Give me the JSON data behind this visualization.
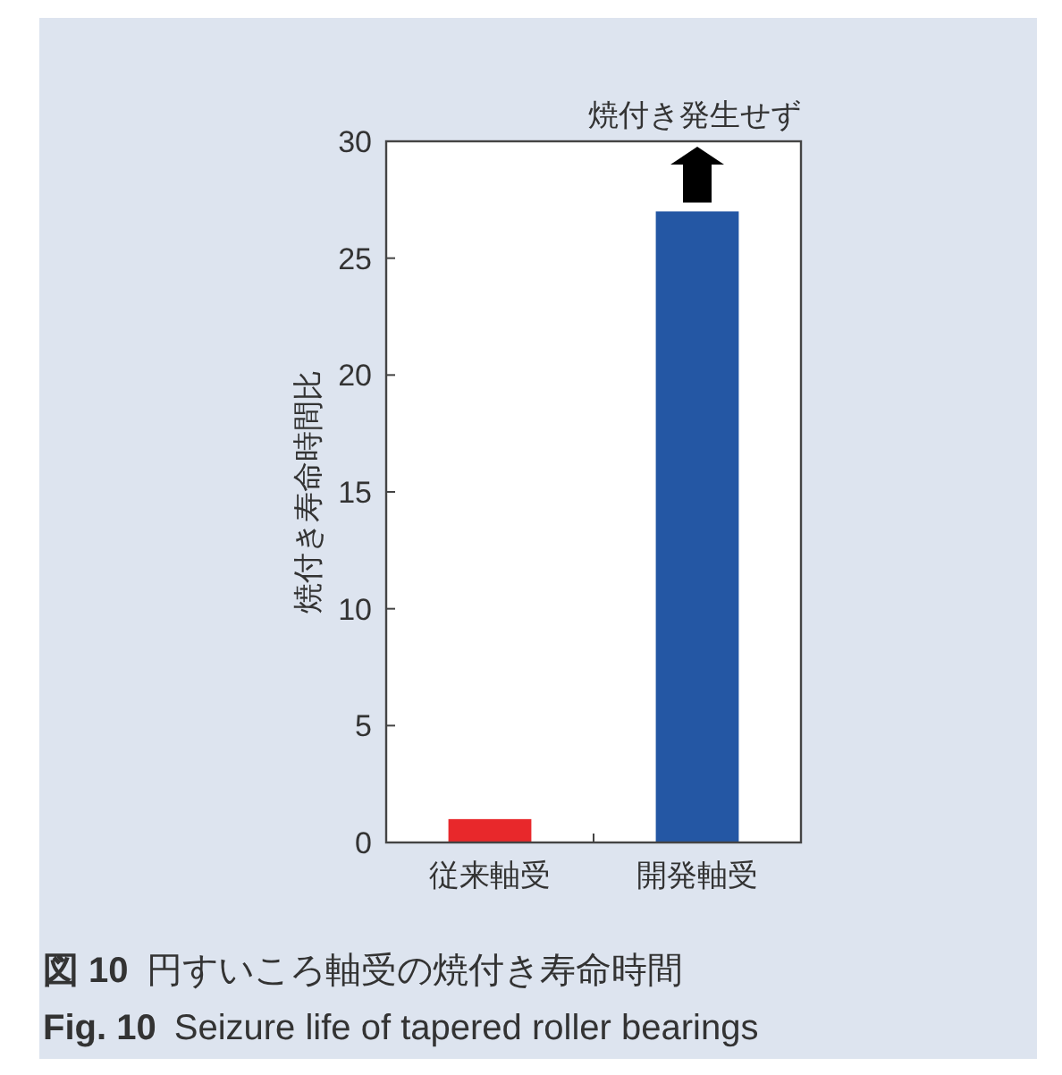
{
  "chart_data": {
    "type": "bar",
    "ylabel": "焼付き寿命時間比",
    "categories": [
      "従来軸受",
      "開発軸受"
    ],
    "values": [
      1,
      27
    ],
    "colors": [
      "#e8282b",
      "#2457a4"
    ],
    "ylim": [
      0,
      30
    ],
    "yticks": [
      0,
      5,
      10,
      15,
      20,
      25,
      30
    ],
    "grid": false,
    "annotations": [
      "焼付き発生せず",
      "図 10 円すいころ軸受の焼付き寿命時間",
      "Fig. 10 Seizure life of tapered roller bearings"
    ]
  }
}
